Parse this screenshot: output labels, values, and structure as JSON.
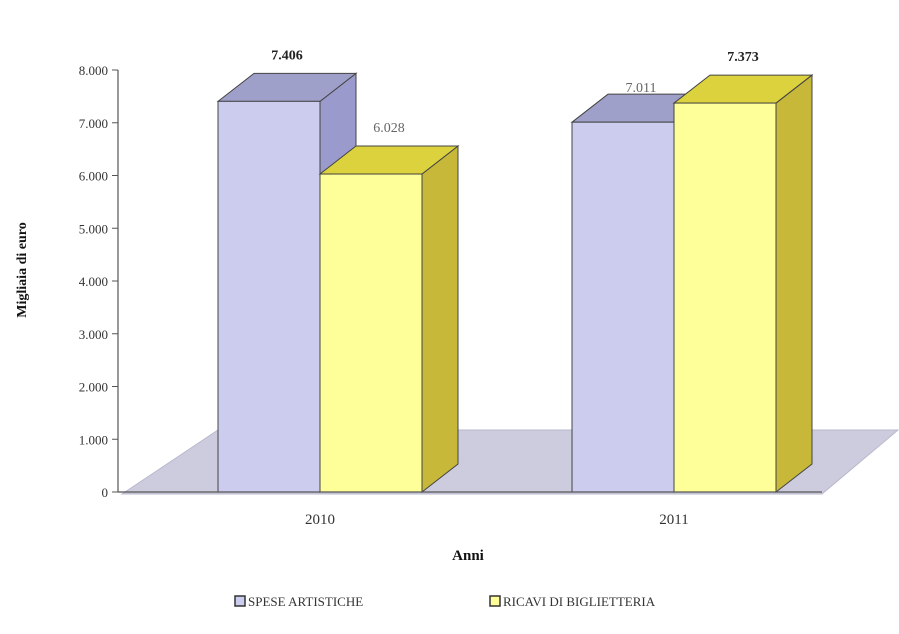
{
  "chart_data": {
    "type": "bar",
    "title": "",
    "xlabel": "Anni",
    "ylabel": "Migliaia di euro",
    "categories": [
      "2010",
      "2011"
    ],
    "series": [
      {
        "name": "SPESE ARTISTICHE",
        "values": [
          7406,
          7011
        ],
        "labels": [
          "7.406",
          "7.011"
        ],
        "color": "#ccccee"
      },
      {
        "name": "RICAVI DI BIGLIETTERIA",
        "values": [
          6028,
          7373
        ],
        "labels": [
          "6.028",
          "7.373"
        ],
        "color": "#ffff99"
      }
    ],
    "ylim": [
      0,
      8000
    ],
    "yticks": [
      0,
      1000,
      2000,
      3000,
      4000,
      5000,
      6000,
      7000,
      8000
    ],
    "ytick_labels": [
      "0",
      "1.000",
      "2.000",
      "3.000",
      "4.000",
      "5.000",
      "6.000",
      "7.000",
      "8.000"
    ],
    "grid": false,
    "legend": "bottom",
    "style": "3d-columns"
  }
}
